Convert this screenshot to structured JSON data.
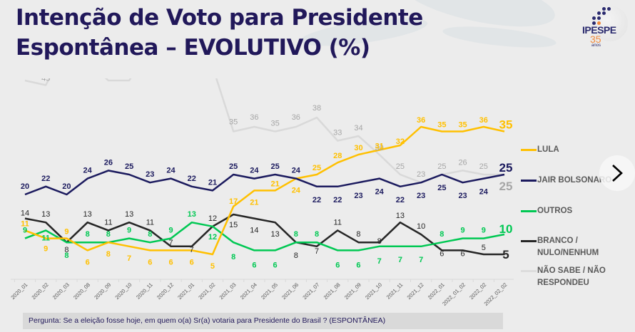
{
  "header": {
    "title_line1": "Intenção de Voto para Presidente",
    "title_line2": "Espontânea – EVOLUTIVO (%)"
  },
  "logo": {
    "brand": "IPESPE",
    "years": "35",
    "anos": "anos"
  },
  "navigation": {
    "next_icon": "chevron-right-icon"
  },
  "question": "Pergunta:  Se a eleição fosse hoje, em quem o(a) Sr(a) votaria para  Presidente do Brasil ? (ESPONTÂNEA)",
  "chart_data": {
    "type": "line",
    "title": "Intenção de Voto para Presidente Espontânea – EVOLUTIVO (%)",
    "xlabel": "",
    "ylabel": "",
    "ylim": [
      0,
      60
    ],
    "grid": false,
    "legend_position": "right",
    "categories": [
      "2020_01",
      "2020_02",
      "2020_03",
      "2020_08",
      "2020_09",
      "2020_10",
      "2020_11",
      "2020_12",
      "2021_01",
      "2021_02",
      "2021_03",
      "2021_04",
      "2021_05",
      "2021_06",
      "2021_07",
      "2021_08",
      "2021_09",
      "2021_10",
      "2021_11",
      "2021_12",
      "2022_01",
      "2022_01_02",
      "2022_02",
      "2022_02_02"
    ],
    "series": [
      {
        "name": "LULA",
        "color": "#ffc000",
        "values": [
          11,
          9,
          9,
          6,
          8,
          7,
          6,
          6,
          6,
          5,
          17,
          21,
          21,
          24,
          25,
          28,
          30,
          31,
          32,
          36,
          35,
          35,
          36,
          35
        ]
      },
      {
        "name": "JAIR BOLSONARO",
        "color": "#1b1a5e",
        "values": [
          20,
          22,
          20,
          24,
          26,
          25,
          23,
          24,
          22,
          21,
          25,
          24,
          25,
          24,
          22,
          22,
          23,
          24,
          22,
          23,
          25,
          23,
          24,
          25
        ]
      },
      {
        "name": "OUTROS",
        "color": "#00c853",
        "values": [
          9,
          11,
          8,
          8,
          8,
          9,
          8,
          9,
          13,
          12,
          8,
          6,
          6,
          8,
          8,
          6,
          6,
          7,
          7,
          7,
          8,
          9,
          9,
          10
        ]
      },
      {
        "name": "BRANCO / NULO/NENHUM",
        "color": "#262626",
        "values": [
          14,
          13,
          8,
          13,
          11,
          13,
          11,
          7,
          7,
          12,
          15,
          14,
          13,
          8,
          7,
          11,
          8,
          8,
          13,
          10,
          6,
          6,
          5,
          5
        ]
      },
      {
        "name": "NÃO SABE / NÃO RESPONDEU",
        "color": "#d9d9d9",
        "label_color": "#a6a6a6",
        "values": [
          46,
          45,
          54,
          50,
          46,
          46,
          53,
          54,
          53,
          49,
          35,
          36,
          35,
          36,
          38,
          33,
          34,
          30,
          25,
          23,
          25,
          26,
          25,
          25
        ]
      }
    ]
  }
}
